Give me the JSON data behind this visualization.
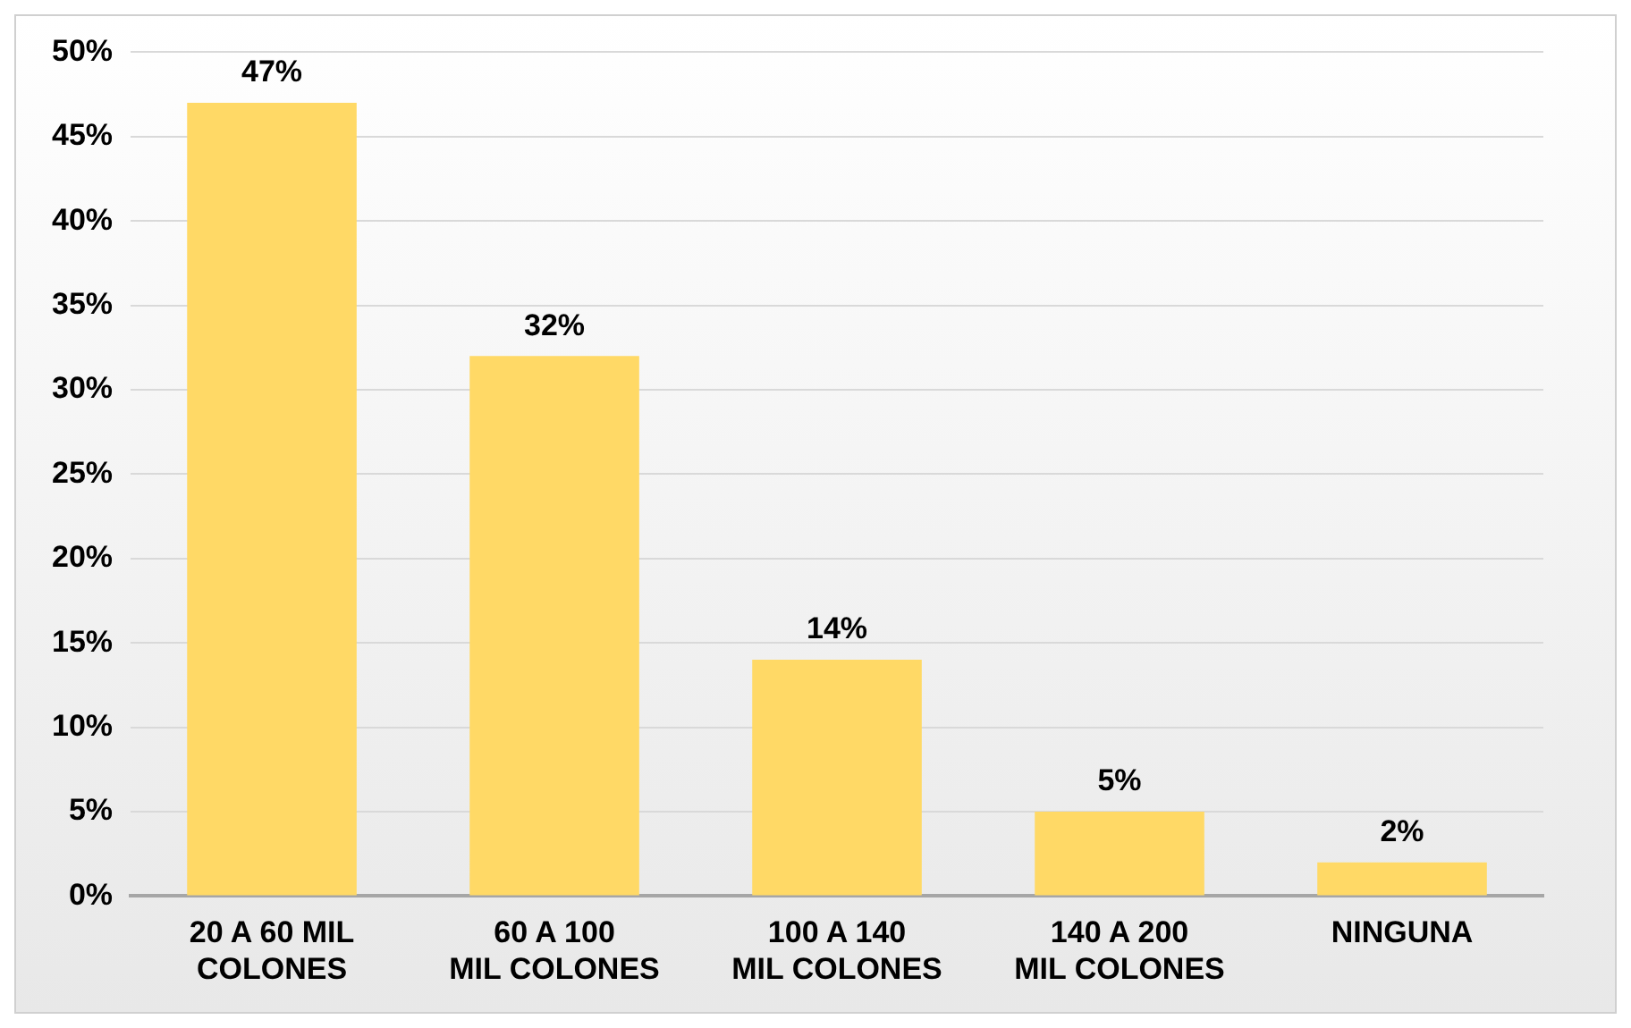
{
  "chart_data": {
    "type": "bar",
    "categories": [
      "20 A 60 MIL COLONES",
      "60 A 100 MIL COLONES",
      "100 A 140 MIL COLONES",
      "140 A 200 MIL COLONES",
      "NINGUNA"
    ],
    "values": [
      47,
      32,
      14,
      5,
      2
    ],
    "value_labels": [
      "47%",
      "32%",
      "14%",
      "5%",
      "2%"
    ],
    "color": "#ffd966",
    "ylim": [
      0,
      50
    ],
    "yticks": [
      {
        "value": 0,
        "label": "0%"
      },
      {
        "value": 5,
        "label": "5%"
      },
      {
        "value": 10,
        "label": "10%"
      },
      {
        "value": 15,
        "label": "15%"
      },
      {
        "value": 20,
        "label": "20%"
      },
      {
        "value": 25,
        "label": "25%"
      },
      {
        "value": 30,
        "label": "30%"
      },
      {
        "value": 35,
        "label": "35%"
      },
      {
        "value": 40,
        "label": "40%"
      },
      {
        "value": 45,
        "label": "45%"
      },
      {
        "value": 50,
        "label": "50%"
      }
    ],
    "grid": "y",
    "legend": false
  }
}
